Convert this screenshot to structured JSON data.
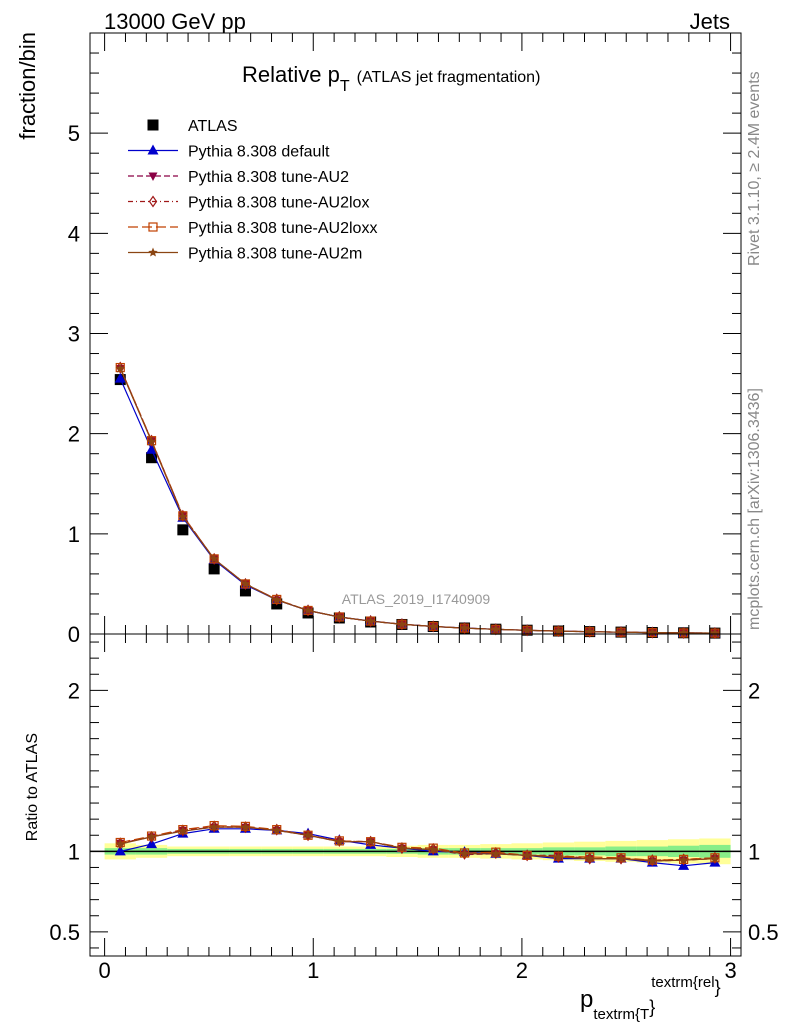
{
  "header": {
    "left": "13000 GeV pp",
    "right": "Jets"
  },
  "side_text": {
    "rivet": "Rivet 3.1.10, ≥ 2.4M events",
    "mcplots": "mcplots.cern.ch [arXiv:1306.3436]"
  },
  "chart_data": [
    {
      "type": "line",
      "title_main": "Relative p",
      "title_sub": "T",
      "title_paren": "(ATLAS jet fragmentation)",
      "watermark": "ATLAS_2019_I1740909",
      "ylabel": "fraction/bin",
      "xlim": [
        -0.07,
        3.05
      ],
      "ylim": [
        0,
        6
      ],
      "yticks": [
        0,
        1,
        2,
        3,
        4,
        5
      ],
      "ytick_labels": [
        "0",
        "1",
        "2",
        "3",
        "4",
        "5"
      ],
      "x": [
        0.075,
        0.225,
        0.375,
        0.525,
        0.675,
        0.825,
        0.975,
        1.125,
        1.275,
        1.425,
        1.575,
        1.725,
        1.875,
        2.025,
        2.175,
        2.325,
        2.475,
        2.625,
        2.775,
        2.925
      ],
      "series": [
        {
          "name": "ATLAS",
          "color": "#000000",
          "marker": "square",
          "line": "none",
          "values": [
            2.54,
            1.76,
            1.04,
            0.65,
            0.43,
            0.3,
            0.21,
            0.16,
            0.12,
            0.095,
            0.075,
            0.06,
            0.048,
            0.038,
            0.03,
            0.024,
            0.019,
            0.015,
            0.012,
            0.009
          ]
        },
        {
          "name": "Pythia 8.308 default",
          "color": "#0000cc",
          "marker": "triangle-up",
          "line": "solid",
          "values": [
            2.55,
            1.84,
            1.16,
            0.74,
            0.49,
            0.34,
            0.235,
            0.17,
            0.13,
            0.098,
            0.075,
            0.06,
            0.047,
            0.037,
            0.029,
            0.023,
            0.018,
            0.014,
            0.011,
            0.008
          ]
        },
        {
          "name": "Pythia 8.308 tune-AU2",
          "color": "#8b0045",
          "marker": "triangle-down",
          "line": "dashed",
          "values": [
            2.65,
            1.93,
            1.18,
            0.75,
            0.5,
            0.34,
            0.235,
            0.17,
            0.128,
            0.097,
            0.075,
            0.059,
            0.047,
            0.037,
            0.029,
            0.023,
            0.018,
            0.014,
            0.011,
            0.009
          ]
        },
        {
          "name": "Pythia 8.308 tune-AU2lox",
          "color": "#a01818",
          "marker": "diamond-open",
          "line": "dashdot",
          "values": [
            2.66,
            1.93,
            1.18,
            0.75,
            0.5,
            0.345,
            0.235,
            0.17,
            0.129,
            0.098,
            0.076,
            0.059,
            0.047,
            0.037,
            0.029,
            0.023,
            0.018,
            0.014,
            0.011,
            0.009
          ]
        },
        {
          "name": "Pythia 8.308 tune-AU2loxx",
          "color": "#c04000",
          "marker": "square-open",
          "line": "longdash",
          "values": [
            2.66,
            1.93,
            1.18,
            0.75,
            0.5,
            0.345,
            0.235,
            0.17,
            0.129,
            0.098,
            0.076,
            0.059,
            0.047,
            0.037,
            0.029,
            0.023,
            0.018,
            0.014,
            0.011,
            0.009
          ]
        },
        {
          "name": "Pythia 8.308 tune-AU2m",
          "color": "#8b4513",
          "marker": "star",
          "line": "solid",
          "values": [
            2.65,
            1.92,
            1.17,
            0.75,
            0.5,
            0.34,
            0.235,
            0.17,
            0.128,
            0.097,
            0.075,
            0.059,
            0.047,
            0.037,
            0.029,
            0.023,
            0.018,
            0.014,
            0.011,
            0.009
          ]
        }
      ]
    },
    {
      "type": "line",
      "ylabel": "Ratio to ATLAS",
      "xlabel_main": "p",
      "xlabel_sub": "textrm{T",
      "xlabel_brace": "}",
      "xlabel_sup": "textrm{rel",
      "xlabel_sup_brace": "}",
      "xlim": [
        -0.07,
        3.05
      ],
      "ylim": [
        0.35,
        2.35
      ],
      "yticks": [
        0.5,
        1,
        2
      ],
      "ytick_labels": [
        "0.5",
        "1",
        "2"
      ],
      "xticks": [
        0,
        1,
        2,
        3
      ],
      "xtick_labels": [
        "0",
        "1",
        "2",
        "3"
      ],
      "band_inner": [
        0.02,
        0.02,
        0.015,
        0.015,
        0.015,
        0.015,
        0.015,
        0.015,
        0.015,
        0.015,
        0.02,
        0.02,
        0.02,
        0.02,
        0.025,
        0.025,
        0.03,
        0.03,
        0.035,
        0.04
      ],
      "band_outer": [
        0.05,
        0.04,
        0.03,
        0.03,
        0.03,
        0.03,
        0.03,
        0.03,
        0.03,
        0.035,
        0.04,
        0.04,
        0.045,
        0.05,
        0.055,
        0.06,
        0.065,
        0.07,
        0.075,
        0.08
      ],
      "series": [
        {
          "name": "Pythia 8.308 default",
          "color": "#0000cc",
          "marker": "triangle-up",
          "line": "solid",
          "values": [
            1.0,
            1.045,
            1.11,
            1.14,
            1.14,
            1.13,
            1.11,
            1.07,
            1.04,
            1.02,
            1.0,
            0.995,
            0.985,
            0.975,
            0.955,
            0.955,
            0.955,
            0.93,
            0.91,
            0.93
          ]
        },
        {
          "name": "Pythia 8.308 tune-AU2",
          "color": "#8b0045",
          "marker": "triangle-down",
          "line": "dashed",
          "values": [
            1.05,
            1.09,
            1.13,
            1.15,
            1.15,
            1.13,
            1.1,
            1.06,
            1.06,
            1.02,
            1.01,
            0.98,
            0.985,
            0.975,
            0.975,
            0.955,
            0.955,
            0.94,
            0.945,
            0.955
          ]
        },
        {
          "name": "Pythia 8.308 tune-AU2lox",
          "color": "#a01818",
          "marker": "diamond-open",
          "line": "dashdot",
          "values": [
            1.05,
            1.09,
            1.13,
            1.155,
            1.15,
            1.135,
            1.1,
            1.065,
            1.06,
            1.02,
            1.015,
            0.985,
            0.99,
            0.975,
            0.965,
            0.955,
            0.955,
            0.945,
            0.95,
            0.96
          ]
        },
        {
          "name": "Pythia 8.308 tune-AU2loxx",
          "color": "#c04000",
          "marker": "square-open",
          "line": "longdash",
          "values": [
            1.055,
            1.095,
            1.135,
            1.16,
            1.155,
            1.135,
            1.1,
            1.065,
            1.06,
            1.025,
            1.02,
            0.99,
            0.995,
            0.975,
            0.97,
            0.965,
            0.96,
            0.945,
            0.95,
            0.96
          ]
        },
        {
          "name": "Pythia 8.308 tune-AU2m",
          "color": "#8b4513",
          "marker": "star",
          "line": "solid",
          "values": [
            1.045,
            1.09,
            1.125,
            1.15,
            1.15,
            1.13,
            1.1,
            1.06,
            1.06,
            1.02,
            1.01,
            0.985,
            0.985,
            0.975,
            0.965,
            0.955,
            0.955,
            0.94,
            0.945,
            0.955
          ]
        }
      ]
    }
  ]
}
